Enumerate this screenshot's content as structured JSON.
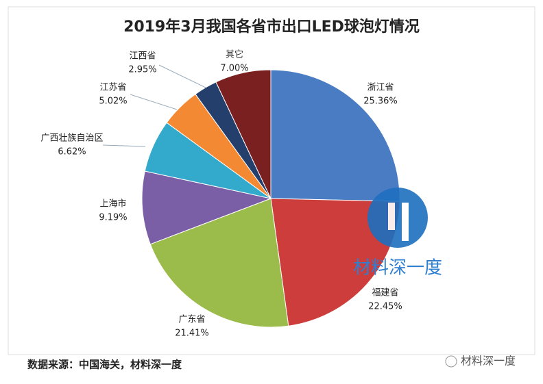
{
  "chart_data": {
    "type": "pie",
    "title": "2019年3月我国各省市出口LED球泡灯情况",
    "categories": [
      "浙江省",
      "福建省",
      "广东省",
      "上海市",
      "广西壮族自治区",
      "江苏省",
      "江西省",
      "其它"
    ],
    "values": [
      25.36,
      22.45,
      21.41,
      9.19,
      6.62,
      5.02,
      2.95,
      7.0
    ],
    "value_labels": [
      "25.36%",
      "22.45%",
      "21.41%",
      "9.19%",
      "6.62%",
      "5.02%",
      "2.95%",
      "7.00%"
    ],
    "colors": [
      "#4a7cc3",
      "#cc3d3b",
      "#9bbb4b",
      "#7b5fa6",
      "#33aacb",
      "#f38a33",
      "#243f6b",
      "#7a2020"
    ]
  },
  "source": "数据来源：中国海关，材料深一度",
  "watermark": "材料深一度",
  "account": "材料深一度"
}
